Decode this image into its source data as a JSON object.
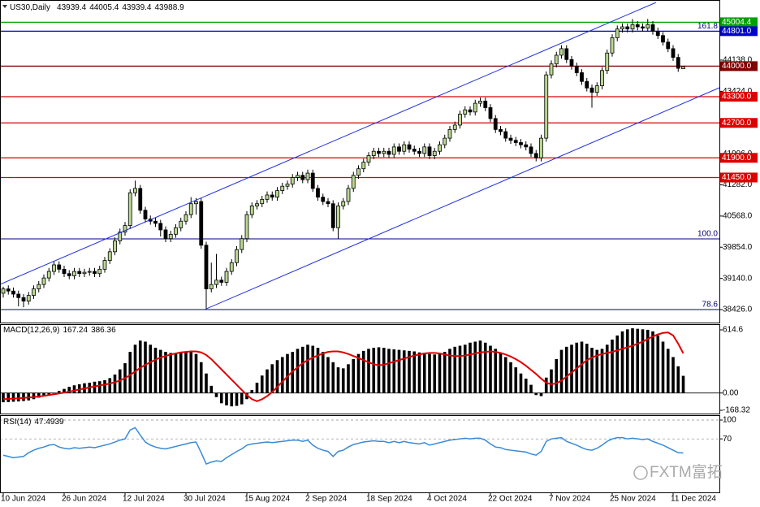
{
  "chart_data": {
    "type": "candlestick",
    "symbol": "US30,Daily",
    "categories": [
      "10 Jun 2024",
      null,
      null,
      null,
      null,
      null,
      null,
      null,
      null,
      null,
      null,
      null,
      "26 Jun 2024",
      null,
      null,
      null,
      null,
      null,
      null,
      null,
      null,
      null,
      null,
      null,
      "12 Jul 2024",
      null,
      null,
      null,
      null,
      null,
      null,
      null,
      null,
      null,
      null,
      null,
      "30 Jul 2024",
      null,
      null,
      null,
      null,
      null,
      null,
      null,
      null,
      null,
      null,
      null,
      "15 Aug 2024",
      null,
      null,
      null,
      null,
      null,
      null,
      null,
      null,
      null,
      null,
      null,
      "2 Sep 2024",
      null,
      null,
      null,
      null,
      null,
      null,
      null,
      null,
      null,
      null,
      null,
      "18 Sep 2024",
      null,
      null,
      null,
      null,
      null,
      null,
      null,
      null,
      null,
      null,
      null,
      "4 Oct 2024",
      null,
      null,
      null,
      null,
      null,
      null,
      null,
      null,
      null,
      null,
      null,
      "22 Oct 2024",
      null,
      null,
      null,
      null,
      null,
      null,
      null,
      null,
      null,
      null,
      null,
      "7 Nov 2024",
      null,
      null,
      null,
      null,
      null,
      null,
      null,
      null,
      null,
      null,
      null,
      "25 Nov 2024",
      null,
      null,
      null,
      null,
      null,
      null,
      null,
      null,
      null,
      null,
      null,
      "11 Dec 2024",
      null,
      null
    ],
    "candles": [
      [
        38800,
        38950,
        38700,
        38900
      ],
      [
        38900,
        38980,
        38770,
        38850
      ],
      [
        38850,
        38930,
        38700,
        38780
      ],
      [
        38780,
        38860,
        38500,
        38700
      ],
      [
        38700,
        38780,
        38480,
        38620
      ],
      [
        38620,
        38830,
        38540,
        38750
      ],
      [
        38750,
        38980,
        38670,
        38900
      ],
      [
        38900,
        39080,
        38820,
        39000
      ],
      [
        39000,
        39230,
        38920,
        39150
      ],
      [
        39150,
        39380,
        39070,
        39300
      ],
      [
        39300,
        39530,
        39220,
        39450
      ],
      [
        39450,
        39530,
        39270,
        39350
      ],
      [
        39350,
        39430,
        39170,
        39250
      ],
      [
        39250,
        39330,
        39120,
        39200
      ],
      [
        39200,
        39380,
        39120,
        39300
      ],
      [
        39300,
        39380,
        39170,
        39250
      ],
      [
        39250,
        39360,
        39170,
        39280
      ],
      [
        39280,
        39380,
        39200,
        39300
      ],
      [
        39300,
        39380,
        39170,
        39250
      ],
      [
        39250,
        39430,
        39170,
        39350
      ],
      [
        39350,
        39630,
        39270,
        39550
      ],
      [
        39550,
        39830,
        39470,
        39750
      ],
      [
        39750,
        40080,
        39670,
        40000
      ],
      [
        40000,
        40280,
        39920,
        40200
      ],
      [
        40200,
        40430,
        40120,
        40350
      ],
      [
        40350,
        41180,
        40270,
        41100
      ],
      [
        41100,
        41380,
        41020,
        41200
      ],
      [
        41200,
        41280,
        40620,
        40700
      ],
      [
        40700,
        40780,
        40420,
        40500
      ],
      [
        40500,
        40580,
        40370,
        40450
      ],
      [
        40450,
        40530,
        40320,
        40400
      ],
      [
        40400,
        40480,
        40100,
        40250
      ],
      [
        40250,
        40330,
        39970,
        40050
      ],
      [
        40050,
        40230,
        39970,
        40150
      ],
      [
        40150,
        40380,
        40070,
        40300
      ],
      [
        40300,
        40530,
        40220,
        40450
      ],
      [
        40450,
        40680,
        40370,
        40600
      ],
      [
        40600,
        41000,
        40520,
        40850
      ],
      [
        40850,
        40980,
        40600,
        40900
      ],
      [
        40900,
        40980,
        39820,
        39900
      ],
      [
        39900,
        39980,
        38450,
        38900
      ],
      [
        38900,
        39500,
        38820,
        39000
      ],
      [
        39000,
        39700,
        38920,
        39100
      ],
      [
        39100,
        39180,
        38970,
        39050
      ],
      [
        39050,
        39380,
        38970,
        39300
      ],
      [
        39300,
        39580,
        39220,
        39500
      ],
      [
        39500,
        39880,
        39420,
        39800
      ],
      [
        39800,
        40130,
        39720,
        40050
      ],
      [
        40050,
        40680,
        39970,
        40600
      ],
      [
        40600,
        40880,
        40520,
        40800
      ],
      [
        40800,
        40930,
        40720,
        40850
      ],
      [
        40850,
        41030,
        40770,
        40950
      ],
      [
        40950,
        41130,
        40870,
        41050
      ],
      [
        41050,
        41130,
        40920,
        41000
      ],
      [
        41000,
        41230,
        40920,
        41150
      ],
      [
        41150,
        41330,
        41070,
        41250
      ],
      [
        41250,
        41380,
        41170,
        41300
      ],
      [
        41300,
        41530,
        41220,
        41450
      ],
      [
        41450,
        41580,
        41370,
        41500
      ],
      [
        41500,
        41580,
        41320,
        41400
      ],
      [
        41400,
        41630,
        41320,
        41550
      ],
      [
        41550,
        41630,
        41120,
        41200
      ],
      [
        41200,
        41280,
        40920,
        41000
      ],
      [
        41000,
        41080,
        40820,
        40900
      ],
      [
        40900,
        40980,
        40770,
        40850
      ],
      [
        40850,
        40930,
        40220,
        40300
      ],
      [
        40300,
        40880,
        40050,
        40800
      ],
      [
        40800,
        40980,
        40720,
        40900
      ],
      [
        40900,
        41280,
        40820,
        41200
      ],
      [
        41200,
        41580,
        41120,
        41500
      ],
      [
        41500,
        41730,
        41420,
        41650
      ],
      [
        41650,
        41880,
        41570,
        41800
      ],
      [
        41800,
        42030,
        41720,
        41950
      ],
      [
        41950,
        42130,
        41870,
        42050
      ],
      [
        42050,
        42130,
        41920,
        42000
      ],
      [
        42000,
        42130,
        41920,
        42050
      ],
      [
        42050,
        42130,
        41900,
        41980
      ],
      [
        41980,
        42230,
        41900,
        42150
      ],
      [
        42150,
        42230,
        41970,
        42050
      ],
      [
        42050,
        42280,
        41970,
        42200
      ],
      [
        42200,
        42280,
        42020,
        42100
      ],
      [
        42100,
        42180,
        41970,
        42050
      ],
      [
        42050,
        42130,
        41920,
        42000
      ],
      [
        42000,
        42230,
        41920,
        42150
      ],
      [
        42150,
        42230,
        41870,
        41950
      ],
      [
        41950,
        42130,
        41870,
        42050
      ],
      [
        42050,
        42280,
        41970,
        42200
      ],
      [
        42200,
        42430,
        42120,
        42350
      ],
      [
        42350,
        42630,
        42270,
        42550
      ],
      [
        42550,
        42730,
        42470,
        42650
      ],
      [
        42650,
        42980,
        42570,
        42900
      ],
      [
        42900,
        43080,
        42820,
        43000
      ],
      [
        43000,
        43080,
        42870,
        42950
      ],
      [
        42950,
        43230,
        42870,
        43150
      ],
      [
        43150,
        43280,
        43070,
        43200
      ],
      [
        43200,
        43280,
        42970,
        43050
      ],
      [
        43050,
        43130,
        42720,
        42800
      ],
      [
        42800,
        42880,
        42470,
        42550
      ],
      [
        42550,
        42630,
        42420,
        42500
      ],
      [
        42500,
        42580,
        42270,
        42350
      ],
      [
        42350,
        42430,
        42220,
        42300
      ],
      [
        42300,
        42380,
        42170,
        42250
      ],
      [
        42250,
        42330,
        42120,
        42200
      ],
      [
        42200,
        42280,
        42070,
        42150
      ],
      [
        42150,
        42230,
        41920,
        42000
      ],
      [
        42000,
        42080,
        41820,
        41900
      ],
      [
        41900,
        42430,
        41820,
        42350
      ],
      [
        42350,
        43880,
        42270,
        43800
      ],
      [
        43800,
        44130,
        43720,
        44050
      ],
      [
        44050,
        44330,
        43970,
        44250
      ],
      [
        44250,
        44480,
        44170,
        44400
      ],
      [
        44400,
        44480,
        44070,
        44150
      ],
      [
        44150,
        44230,
        43920,
        44000
      ],
      [
        44000,
        44080,
        43770,
        43850
      ],
      [
        43850,
        43930,
        43570,
        43650
      ],
      [
        43650,
        43730,
        43420,
        43500
      ],
      [
        43500,
        43580,
        43050,
        43400
      ],
      [
        43400,
        43630,
        43320,
        43550
      ],
      [
        43550,
        43980,
        43470,
        43900
      ],
      [
        43900,
        44380,
        43820,
        44300
      ],
      [
        44300,
        44730,
        44220,
        44650
      ],
      [
        44650,
        44930,
        44570,
        44850
      ],
      [
        44850,
        44980,
        44770,
        44900
      ],
      [
        44900,
        44980,
        44770,
        44850
      ],
      [
        44850,
        45080,
        44770,
        44950
      ],
      [
        44950,
        45030,
        44820,
        44900
      ],
      [
        44900,
        44980,
        44790,
        44870
      ],
      [
        44870,
        45080,
        44790,
        44950
      ],
      [
        44950,
        45030,
        44720,
        44800
      ],
      [
        44800,
        44880,
        44620,
        44700
      ],
      [
        44700,
        44780,
        44470,
        44550
      ],
      [
        44550,
        44630,
        44320,
        44400
      ],
      [
        44400,
        44480,
        44120,
        44200
      ],
      [
        44200,
        44280,
        43870,
        43950
      ],
      [
        43939.4,
        44005.4,
        43939.4,
        43988.9
      ]
    ],
    "up_color": "#b8d890",
    "down_color": "#000000",
    "ylim": [
      38166,
      45477
    ],
    "yticks": [
      {
        "value": 44138,
        "label": "44138.0"
      },
      {
        "value": 43424,
        "label": "43424.0"
      },
      {
        "value": 41996,
        "label": "41996.0"
      },
      {
        "value": 41282,
        "label": "41282.0"
      },
      {
        "value": 40568,
        "label": "40568.0"
      },
      {
        "value": 39854,
        "label": "39854.0"
      },
      {
        "value": 39140,
        "label": "39140.0"
      },
      {
        "value": 38426,
        "label": "38426.0"
      }
    ],
    "hlines": [
      {
        "value": 45004.4,
        "label": "45004.4",
        "color": "#00a000"
      },
      {
        "value": 44801,
        "label": "44801.0",
        "color": "#0000cc",
        "fib": "161.8"
      },
      {
        "value": 44000,
        "label": "44000.0",
        "color": "#800000"
      },
      {
        "value": 43300,
        "label": "43300.0",
        "color": "#dd0000"
      },
      {
        "value": 42700,
        "label": "42700.0",
        "color": "#dd0000"
      },
      {
        "value": 41900,
        "label": "41900.0",
        "color": "#dd0000"
      },
      {
        "value": 41450,
        "label": "41450.0",
        "color": "#dd0000"
      }
    ],
    "fib_levels": [
      {
        "value": 40046,
        "label": "100.0"
      },
      {
        "value": 38427,
        "label": "78.6"
      }
    ],
    "macd": {
      "label": "MACD(12,26,9)",
      "histogram": [
        -90,
        -88,
        -85,
        -82,
        -78,
        -72,
        -60,
        -45,
        -30,
        -15,
        0,
        20,
        40,
        60,
        75,
        85,
        95,
        100,
        110,
        115,
        125,
        145,
        180,
        230,
        290,
        400,
        470,
        510,
        500,
        470,
        440,
        420,
        400,
        390,
        385,
        390,
        400,
        410,
        380,
        300,
        190,
        70,
        -40,
        -100,
        -120,
        -130,
        -125,
        -110,
        -60,
        30,
        100,
        170,
        230,
        280,
        320,
        350,
        380,
        400,
        430,
        450,
        470,
        460,
        440,
        400,
        350,
        300,
        250,
        240,
        280,
        330,
        380,
        410,
        430,
        440,
        445,
        440,
        430,
        425,
        420,
        415,
        410,
        405,
        395,
        390,
        380,
        375,
        380,
        400,
        430,
        450,
        460,
        470,
        490,
        500,
        510,
        490,
        460,
        430,
        390,
        350,
        300,
        250,
        190,
        140,
        80,
        -20,
        -30,
        150,
        230,
        330,
        420,
        450,
        470,
        490,
        500,
        480,
        440,
        420,
        430,
        470,
        520,
        560,
        600,
        620,
        630,
        625,
        620,
        615,
        600,
        560,
        500,
        430,
        350,
        260,
        167.24
      ],
      "signal": [
        -60,
        -58,
        -55,
        -52,
        -48,
        -44,
        -40,
        -34,
        -28,
        -20,
        -12,
        -4,
        4,
        14,
        24,
        34,
        44,
        54,
        64,
        74,
        82,
        92,
        105,
        122,
        145,
        175,
        210,
        245,
        275,
        300,
        325,
        345,
        360,
        375,
        385,
        395,
        400,
        405,
        405,
        395,
        370,
        330,
        280,
        230,
        180,
        130,
        80,
        30,
        -20,
        -60,
        -80,
        -60,
        -30,
        10,
        60,
        110,
        160,
        210,
        250,
        290,
        320,
        345,
        365,
        385,
        400,
        405,
        405,
        395,
        380,
        360,
        340,
        320,
        300,
        280,
        270,
        275,
        290,
        305,
        320,
        335,
        350,
        365,
        375,
        385,
        390,
        390,
        385,
        375,
        365,
        360,
        360,
        365,
        375,
        385,
        395,
        400,
        405,
        400,
        390,
        375,
        355,
        330,
        300,
        265,
        225,
        185,
        140,
        100,
        85,
        95,
        120,
        160,
        200,
        240,
        280,
        320,
        345,
        365,
        380,
        390,
        400,
        415,
        430,
        445,
        460,
        480,
        500,
        525,
        550,
        570,
        585,
        590,
        560,
        480,
        386.36
      ],
      "bar_color": "#000000",
      "signal_color": "#e00000",
      "ylim": [
        -200,
        662
      ],
      "yticks": [
        614.6,
        {
          "value": 0,
          "label": "0.00"
        },
        -168.32
      ]
    },
    "rsi": {
      "label": "RSI(14)",
      "values": [
        44,
        42,
        40,
        41,
        42,
        48,
        52,
        55,
        57,
        60,
        61,
        57,
        55,
        54,
        56,
        55,
        56,
        57,
        56,
        58,
        60,
        62,
        65,
        68,
        70,
        84,
        88,
        76,
        65,
        60,
        57,
        55,
        54,
        56,
        58,
        60,
        62,
        64,
        65,
        48,
        30,
        33,
        35,
        34,
        40,
        45,
        50,
        54,
        60,
        62,
        63,
        64,
        65,
        64,
        65,
        66,
        67,
        68,
        68,
        66,
        68,
        60,
        55,
        52,
        50,
        42,
        50,
        52,
        57,
        61,
        63,
        65,
        66,
        67,
        66,
        66,
        64,
        66,
        64,
        66,
        64,
        63,
        62,
        64,
        60,
        62,
        64,
        66,
        68,
        69,
        70,
        71,
        70,
        71,
        71,
        68,
        62,
        57,
        56,
        53,
        52,
        51,
        50,
        49,
        46,
        44,
        50,
        66,
        70,
        71,
        72,
        66,
        63,
        60,
        56,
        53,
        52,
        55,
        60,
        66,
        70,
        72,
        72,
        70,
        71,
        70,
        69,
        70,
        66,
        63,
        60,
        56,
        52,
        48,
        47.4939
      ],
      "color": "#3a8ad6",
      "ylim": [
        -14,
        106.5
      ],
      "yticks": [
        100,
        70
      ]
    },
    "watermark": "FXTM富拓"
  }
}
